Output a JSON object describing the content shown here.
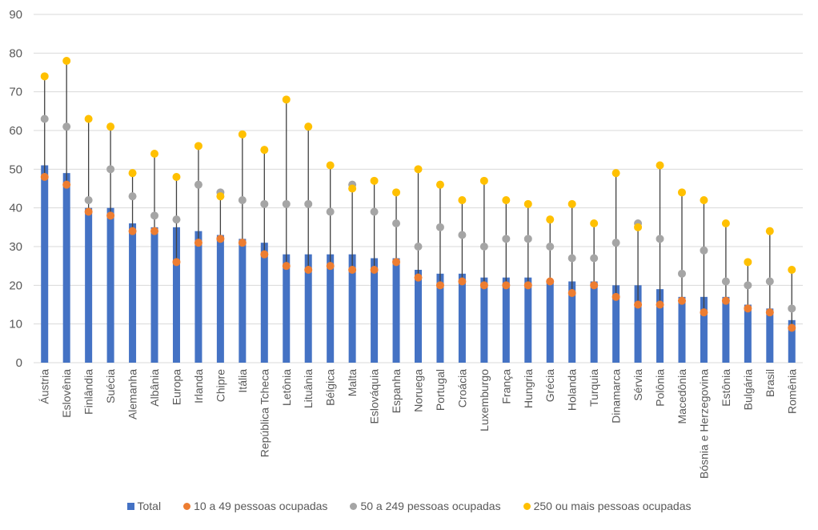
{
  "chart_data": {
    "type": "bar",
    "title": "",
    "xlabel": "",
    "ylabel": "",
    "ylim": [
      0,
      90
    ],
    "yticks": [
      0,
      10,
      20,
      30,
      40,
      50,
      60,
      70,
      80,
      90
    ],
    "grid": true,
    "legend_position": "bottom",
    "categories": [
      "Áustria",
      "Eslovênia",
      "Finlândia",
      "Suécia",
      "Alemanha",
      "Albânia",
      "Europa",
      "Irlanda",
      "Chipre",
      "Itália",
      "República Tcheca",
      "Letônia",
      "Lituânia",
      "Bélgica",
      "Malta",
      "Eslováquia",
      "Espanha",
      "Noruega",
      "Portugal",
      "Croácia",
      "Luxemburgo",
      "França",
      "Hungria",
      "Grécia",
      "Holanda",
      "Turquia",
      "Dinamarca",
      "Sérvia",
      "Polônia",
      "Macedônia",
      "Bósnia e Herzegovina",
      "Estônia",
      "Bulgária",
      "Brasil",
      "Romênia"
    ],
    "series": [
      {
        "name": "Total",
        "kind": "bar",
        "color": "#4472C4",
        "values": [
          51,
          49,
          40,
          40,
          36,
          35,
          35,
          34,
          33,
          32,
          31,
          28,
          28,
          28,
          28,
          27,
          27,
          24,
          23,
          23,
          22,
          22,
          22,
          21,
          21,
          21,
          20,
          20,
          19,
          17,
          17,
          17,
          15,
          14,
          11
        ]
      },
      {
        "name": "10 a 49 pessoas ocupadas",
        "kind": "dot",
        "color": "#ED7D31",
        "values": [
          48,
          46,
          39,
          38,
          34,
          34,
          26,
          31,
          32,
          31,
          28,
          25,
          24,
          25,
          24,
          24,
          26,
          22,
          20,
          21,
          20,
          20,
          20,
          21,
          18,
          20,
          17,
          15,
          15,
          16,
          13,
          16,
          14,
          13,
          9
        ]
      },
      {
        "name": "50 a 249 pessoas ocupadas",
        "kind": "dot",
        "color": "#A5A5A5",
        "values": [
          63,
          61,
          42,
          50,
          43,
          38,
          37,
          46,
          44,
          42,
          41,
          41,
          41,
          39,
          46,
          39,
          36,
          30,
          35,
          33,
          30,
          32,
          32,
          30,
          27,
          27,
          31,
          36,
          32,
          23,
          29,
          21,
          20,
          21,
          14
        ]
      },
      {
        "name": "250 ou mais pessoas ocupadas",
        "kind": "dot",
        "color": "#FFC000",
        "values": [
          74,
          78,
          63,
          61,
          49,
          54,
          48,
          56,
          43,
          59,
          55,
          68,
          61,
          51,
          45,
          47,
          44,
          50,
          46,
          42,
          47,
          42,
          41,
          37,
          41,
          36,
          49,
          35,
          51,
          44,
          42,
          36,
          26,
          34,
          24
        ]
      }
    ]
  }
}
